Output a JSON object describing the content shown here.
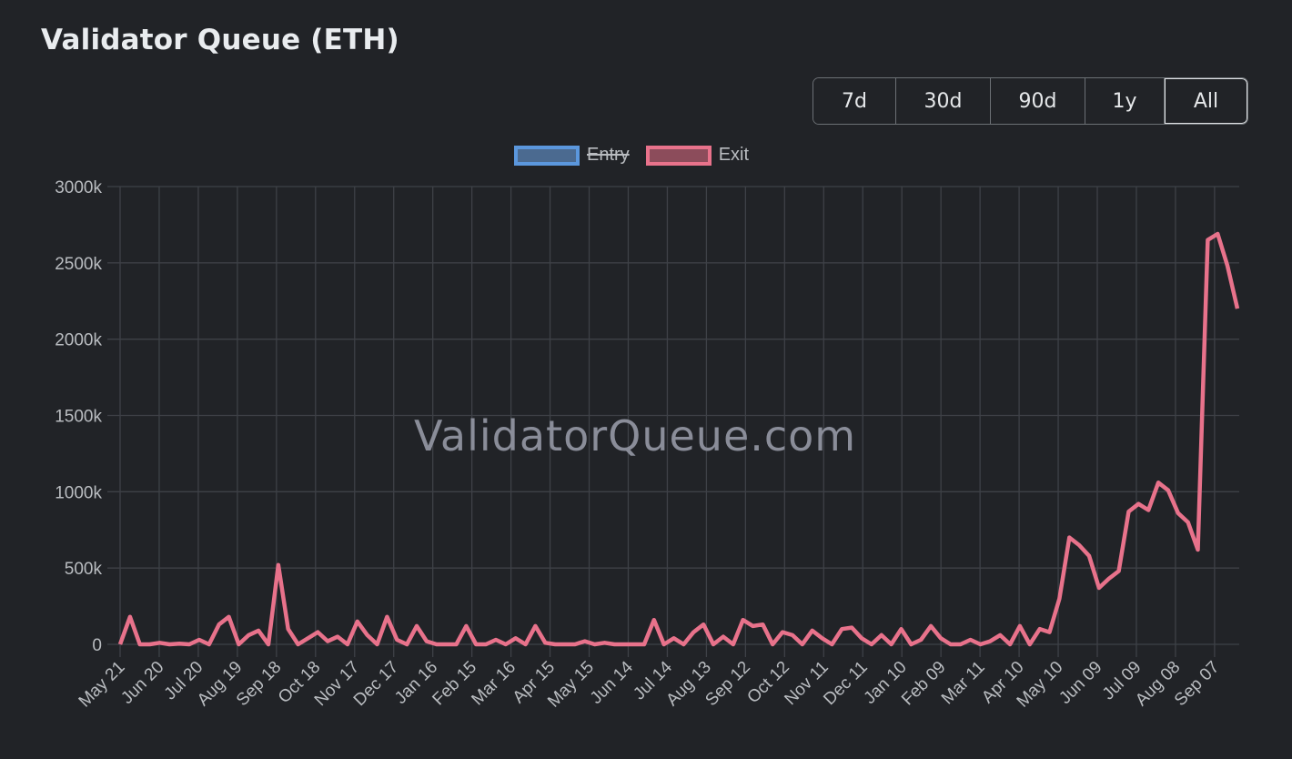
{
  "title": "Validator Queue (ETH)",
  "range_buttons": [
    {
      "label": "7d",
      "active": false
    },
    {
      "label": "30d",
      "active": false
    },
    {
      "label": "90d",
      "active": false
    },
    {
      "label": "1y",
      "active": false
    },
    {
      "label": "All",
      "active": true
    }
  ],
  "legend": [
    {
      "label": "Entry",
      "hidden": true,
      "border": "#5b97dd",
      "fill": "#4b6a90"
    },
    {
      "label": "Exit",
      "hidden": false,
      "border": "#e8728b",
      "fill": "#8c4c5b"
    }
  ],
  "watermark": "ValidatorQueue.com",
  "colors": {
    "background": "#212327",
    "grid": "#3e4147",
    "axis_text": "#b9bcc0",
    "exit_line": "#e8728b",
    "entry_line": "#5b97dd"
  },
  "chart_data": {
    "type": "line",
    "title": "Validator Queue (ETH)",
    "xlabel": "",
    "ylabel": "",
    "ylim": [
      0,
      3000
    ],
    "y_unit": "k",
    "yticks": [
      "0",
      "500k",
      "1000k",
      "1500k",
      "2000k",
      "2500k",
      "3000k"
    ],
    "categories": [
      "May 21",
      "Jun 20",
      "Jul 20",
      "Aug 19",
      "Sep 18",
      "Oct 18",
      "Nov 17",
      "Dec 17",
      "Jan 16",
      "Feb 15",
      "Mar 16",
      "Apr 15",
      "May 15",
      "Jun 14",
      "Jul 14",
      "Aug 13",
      "Sep 12",
      "Oct 12",
      "Nov 11",
      "Dec 11",
      "Jan 10",
      "Feb 09",
      "Mar 11",
      "Apr 10",
      "May 10",
      "Jun 09",
      "Jul 09",
      "Aug 08",
      "Sep 07"
    ],
    "grid": true,
    "legend_position": "top",
    "series": [
      {
        "name": "Entry",
        "hidden": true,
        "values": []
      },
      {
        "name": "Exit",
        "hidden": false,
        "values": [
          0,
          180,
          0,
          0,
          10,
          0,
          5,
          0,
          30,
          0,
          130,
          180,
          0,
          60,
          90,
          0,
          520,
          100,
          0,
          40,
          80,
          20,
          50,
          0,
          150,
          60,
          0,
          180,
          30,
          0,
          120,
          20,
          0,
          0,
          0,
          120,
          0,
          0,
          30,
          0,
          40,
          0,
          120,
          10,
          0,
          0,
          0,
          20,
          0,
          10,
          0,
          0,
          0,
          0,
          160,
          0,
          40,
          0,
          80,
          130,
          0,
          50,
          0,
          160,
          120,
          130,
          0,
          80,
          60,
          0,
          90,
          40,
          0,
          100,
          110,
          40,
          0,
          60,
          0,
          100,
          0,
          30,
          120,
          40,
          0,
          0,
          30,
          0,
          20,
          60,
          0,
          120,
          0,
          100,
          80,
          300,
          700,
          650,
          580,
          370,
          430,
          480,
          870,
          920,
          880,
          1060,
          1010,
          860,
          800,
          620,
          2650,
          2690,
          2480,
          2200
        ]
      }
    ]
  }
}
